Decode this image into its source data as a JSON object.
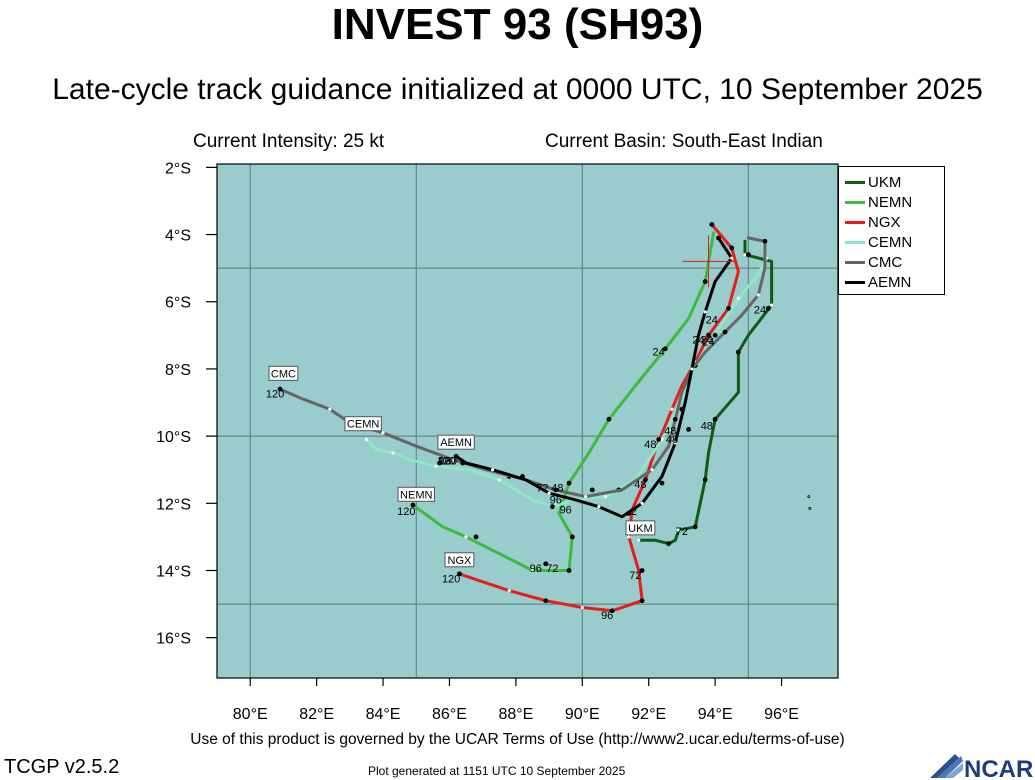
{
  "header": {
    "title": "INVEST 93 (SH93)",
    "subtitle": "Late-cycle track guidance initialized at 0000 UTC, 10 September 2025",
    "intensity": "Current Intensity: 25 kt",
    "basin": "Current Basin: South-East Indian"
  },
  "footer": {
    "terms": "Use of this product is governed by the UCAR Terms of Use (http://www2.ucar.edu/terms-of-use)",
    "version": "TCGP v2.5.2",
    "generated": "Plot generated at 1151 UTC   10 September 2025",
    "logo_text": "NCAR"
  },
  "map": {
    "lon_range": [
      79,
      97.7
    ],
    "lat_range": [
      -17.2,
      -1.9
    ],
    "lon_ticks": [
      {
        "v": 80,
        "label": "80°E"
      },
      {
        "v": 82,
        "label": "82°E"
      },
      {
        "v": 84,
        "label": "84°E"
      },
      {
        "v": 86,
        "label": "86°E"
      },
      {
        "v": 88,
        "label": "88°E"
      },
      {
        "v": 90,
        "label": "90°E"
      },
      {
        "v": 92,
        "label": "92°E"
      },
      {
        "v": 94,
        "label": "94°E"
      },
      {
        "v": 96,
        "label": "96°E"
      }
    ],
    "lat_ticks": [
      {
        "v": -2,
        "label": "2°S"
      },
      {
        "v": -4,
        "label": "4°S"
      },
      {
        "v": -6,
        "label": "6°S"
      },
      {
        "v": -8,
        "label": "8°S"
      },
      {
        "v": -10,
        "label": "10°S"
      },
      {
        "v": -12,
        "label": "12°S"
      },
      {
        "v": -14,
        "label": "14°S"
      },
      {
        "v": -16,
        "label": "16°S"
      }
    ],
    "grid_lons": [
      80,
      85,
      90,
      95
    ],
    "grid_lats": [
      -5,
      -10,
      -15
    ],
    "ocean_color": "#99cccc",
    "grid_color": "#5e7a7a",
    "current_position": {
      "lon": 93.8,
      "lat": -4.8
    },
    "islands": [
      {
        "lon": 96.85,
        "lat": -12.15
      },
      {
        "lon": 96.82,
        "lat": -11.8
      }
    ]
  },
  "legend": [
    {
      "name": "UKM",
      "color": "#135b13"
    },
    {
      "name": "NEMN",
      "color": "#3cbc3c"
    },
    {
      "name": "NGX",
      "color": "#e81c1c"
    },
    {
      "name": "CEMN",
      "color": "#8ee8c4"
    },
    {
      "name": "CMC",
      "color": "#666666"
    },
    {
      "name": "AEMN",
      "color": "#000000"
    }
  ],
  "tracks": [
    {
      "name": "UKM",
      "color": "#135b13",
      "points": [
        [
          94.9,
          -4.2
        ],
        [
          94.9,
          -4.6
        ],
        [
          95.7,
          -4.8
        ],
        [
          95.7,
          -6.1
        ],
        [
          95.0,
          -7.0
        ],
        [
          94.7,
          -7.5
        ],
        [
          94.7,
          -8.7
        ],
        [
          94.0,
          -9.5
        ],
        [
          93.8,
          -10.5
        ],
        [
          93.7,
          -11.3
        ],
        [
          93.4,
          -12.7
        ],
        [
          92.9,
          -12.8
        ],
        [
          92.8,
          -13.1
        ],
        [
          92.6,
          -13.2
        ],
        [
          92.2,
          -13.1
        ],
        [
          91.7,
          -13.1
        ]
      ],
      "markers": [
        [
          95.0,
          -4.6
        ],
        [
          95.6,
          -6.2
        ],
        [
          94.7,
          -7.5
        ],
        [
          94.0,
          -9.5
        ],
        [
          93.7,
          -11.3
        ],
        [
          93.4,
          -12.7
        ],
        [
          92.6,
          -13.2
        ]
      ],
      "hour_labels": [
        {
          "lon": 95.35,
          "lat": -6.35,
          "text": "24"
        },
        {
          "lon": 93.75,
          "lat": -9.8,
          "text": "48"
        },
        {
          "lon": 93.0,
          "lat": -12.95,
          "text": "72"
        }
      ],
      "end_label": {
        "text": "UKM",
        "lon": 91.75,
        "lat": -12.85
      }
    },
    {
      "name": "NEMN",
      "color": "#3cbc3c",
      "points": [
        [
          93.95,
          -3.95
        ],
        [
          93.7,
          -5.4
        ],
        [
          93.2,
          -6.5
        ],
        [
          92.5,
          -7.4
        ],
        [
          91.6,
          -8.5
        ],
        [
          90.8,
          -9.5
        ],
        [
          90.2,
          -10.5
        ],
        [
          89.6,
          -11.4
        ],
        [
          89.3,
          -12.3
        ],
        [
          89.7,
          -13.0
        ],
        [
          89.6,
          -14.0
        ],
        [
          88.5,
          -14.0
        ],
        [
          87.5,
          -13.5
        ],
        [
          86.5,
          -13.0
        ],
        [
          85.8,
          -12.7
        ],
        [
          84.9,
          -12.05
        ]
      ],
      "markers": [
        [
          93.7,
          -5.4
        ],
        [
          92.5,
          -7.4
        ],
        [
          90.8,
          -9.5
        ],
        [
          89.6,
          -11.4
        ],
        [
          89.7,
          -13.0
        ],
        [
          89.6,
          -14.0
        ],
        [
          88.9,
          -13.8
        ],
        [
          86.8,
          -13.0
        ],
        [
          84.9,
          -12.05
        ]
      ],
      "hour_labels": [
        {
          "lon": 92.3,
          "lat": -7.6,
          "text": "24"
        },
        {
          "lon": 89.25,
          "lat": -11.65,
          "text": "48"
        },
        {
          "lon": 89.1,
          "lat": -14.05,
          "text": "72"
        },
        {
          "lon": 88.6,
          "lat": -14.05,
          "text": "96"
        },
        {
          "lon": 84.7,
          "lat": -12.35,
          "text": "120"
        }
      ],
      "end_label": {
        "text": "NEMN",
        "lon": 85.0,
        "lat": -11.85
      }
    },
    {
      "name": "NGX",
      "color": "#e81c1c",
      "points": [
        [
          93.9,
          -3.7
        ],
        [
          94.5,
          -4.4
        ],
        [
          94.7,
          -5.1
        ],
        [
          94.4,
          -6.2
        ],
        [
          93.8,
          -7.0
        ],
        [
          93.4,
          -7.8
        ],
        [
          93.0,
          -8.5
        ],
        [
          92.7,
          -9.2
        ],
        [
          92.2,
          -10.4
        ],
        [
          91.9,
          -11.3
        ],
        [
          91.5,
          -12.2
        ],
        [
          91.4,
          -13.0
        ],
        [
          91.7,
          -14.0
        ],
        [
          91.8,
          -14.9
        ],
        [
          90.9,
          -15.2
        ],
        [
          90.0,
          -15.1
        ],
        [
          88.9,
          -14.9
        ],
        [
          87.8,
          -14.6
        ],
        [
          86.3,
          -14.1
        ]
      ],
      "markers": [
        [
          93.9,
          -3.7
        ],
        [
          94.5,
          -4.4
        ],
        [
          93.8,
          -7.0
        ],
        [
          93.0,
          -9.2
        ],
        [
          91.9,
          -11.3
        ],
        [
          91.8,
          -14.0
        ],
        [
          91.8,
          -14.9
        ],
        [
          90.9,
          -15.2
        ],
        [
          88.9,
          -14.9
        ],
        [
          86.3,
          -14.1
        ]
      ],
      "hour_labels": [
        {
          "lon": 93.75,
          "lat": -7.25,
          "text": "24"
        },
        {
          "lon": 91.75,
          "lat": -11.55,
          "text": "48"
        },
        {
          "lon": 91.6,
          "lat": -14.25,
          "text": "72"
        },
        {
          "lon": 90.75,
          "lat": -15.45,
          "text": "96"
        },
        {
          "lon": 86.05,
          "lat": -14.35,
          "text": "120"
        }
      ],
      "end_label": {
        "text": "NGX",
        "lon": 86.3,
        "lat": -13.8
      }
    },
    {
      "name": "CEMN",
      "color": "#8ee8c4",
      "points": [
        [
          95.4,
          -4.2
        ],
        [
          95.55,
          -4.7
        ],
        [
          95.3,
          -5.2
        ],
        [
          94.7,
          -5.9
        ],
        [
          94.1,
          -6.8
        ],
        [
          93.4,
          -7.9
        ],
        [
          93.0,
          -8.9
        ],
        [
          92.4,
          -10.1
        ],
        [
          91.6,
          -11.3
        ],
        [
          90.7,
          -11.8
        ],
        [
          89.7,
          -11.9
        ],
        [
          89.1,
          -12.1
        ],
        [
          88.5,
          -11.9
        ],
        [
          87.5,
          -11.3
        ],
        [
          86.6,
          -11.0
        ],
        [
          85.6,
          -10.9
        ],
        [
          84.8,
          -10.7
        ],
        [
          84.3,
          -10.5
        ],
        [
          83.8,
          -10.4
        ],
        [
          83.5,
          -10.1
        ]
      ],
      "markers": [
        [
          95.0,
          -4.6
        ],
        [
          94.4,
          -6.2
        ],
        [
          93.4,
          -7.9
        ],
        [
          92.3,
          -10.1
        ],
        [
          91.1,
          -11.6
        ],
        [
          89.1,
          -12.1
        ],
        [
          87.8,
          -11.2
        ],
        [
          85.7,
          -10.8
        ]
      ],
      "hour_labels": [
        {
          "lon": 93.9,
          "lat": -6.65,
          "text": "24"
        },
        {
          "lon": 92.05,
          "lat": -10.35,
          "text": "48"
        },
        {
          "lon": 89.5,
          "lat": -12.3,
          "text": "96"
        },
        {
          "lon": 87.6,
          "lat": -11.35,
          "text": ""
        },
        {
          "lon": 85.9,
          "lat": -10.85,
          "text": "120"
        }
      ],
      "end_label": {
        "text": "CEMN",
        "lon": 83.4,
        "lat": -9.75
      }
    },
    {
      "name": "CMC",
      "color": "#666666",
      "points": [
        [
          95.0,
          -4.1
        ],
        [
          95.5,
          -4.2
        ],
        [
          95.5,
          -5.0
        ],
        [
          95.3,
          -5.8
        ],
        [
          94.8,
          -6.4
        ],
        [
          94.3,
          -6.9
        ],
        [
          93.7,
          -7.5
        ],
        [
          93.3,
          -8.0
        ],
        [
          93.0,
          -8.7
        ],
        [
          92.8,
          -9.5
        ],
        [
          92.6,
          -10.3
        ],
        [
          92.1,
          -11.0
        ],
        [
          91.2,
          -11.6
        ],
        [
          90.1,
          -11.8
        ],
        [
          89.2,
          -11.6
        ],
        [
          88.3,
          -11.3
        ],
        [
          87.1,
          -11.0
        ],
        [
          86.1,
          -10.7
        ],
        [
          85.0,
          -10.3
        ],
        [
          84.0,
          -9.9
        ],
        [
          83.0,
          -9.6
        ],
        [
          82.4,
          -9.2
        ],
        [
          81.6,
          -8.9
        ],
        [
          80.9,
          -8.6
        ]
      ],
      "markers": [
        [
          95.5,
          -4.2
        ],
        [
          94.3,
          -6.9
        ],
        [
          92.8,
          -9.5
        ],
        [
          90.3,
          -11.6
        ],
        [
          88.2,
          -11.2
        ],
        [
          86.4,
          -10.8
        ],
        [
          80.9,
          -8.6
        ]
      ],
      "hour_labels": [
        {
          "lon": 93.5,
          "lat": -7.25,
          "text": "24"
        },
        {
          "lon": 92.65,
          "lat": -9.95,
          "text": "48"
        },
        {
          "lon": 88.8,
          "lat": -11.65,
          "text": "72"
        },
        {
          "lon": 85.85,
          "lat": -10.85,
          "text": "96"
        },
        {
          "lon": 80.75,
          "lat": -8.85,
          "text": "120"
        }
      ],
      "end_label": {
        "text": "CMC",
        "lon": 81.0,
        "lat": -8.25
      }
    },
    {
      "name": "AEMN",
      "color": "#000000",
      "points": [
        [
          94.1,
          -4.1
        ],
        [
          94.5,
          -4.7
        ],
        [
          94.0,
          -5.4
        ],
        [
          93.7,
          -6.3
        ],
        [
          93.5,
          -7.0
        ],
        [
          93.3,
          -8.0
        ],
        [
          93.1,
          -9.0
        ],
        [
          92.8,
          -10.2
        ],
        [
          92.4,
          -11.2
        ],
        [
          91.8,
          -12.0
        ],
        [
          91.2,
          -12.4
        ],
        [
          90.5,
          -12.1
        ],
        [
          89.8,
          -11.9
        ],
        [
          89.0,
          -11.7
        ],
        [
          88.3,
          -11.3
        ],
        [
          87.3,
          -11.0
        ],
        [
          86.5,
          -10.8
        ],
        [
          86.2,
          -10.6
        ]
      ],
      "markers": [
        [
          94.1,
          -4.1
        ],
        [
          94.0,
          -7.0
        ],
        [
          93.2,
          -9.8
        ],
        [
          92.4,
          -11.4
        ],
        [
          91.4,
          -12.3
        ],
        [
          89.2,
          -11.6
        ],
        [
          86.2,
          -10.6
        ]
      ],
      "hour_labels": [
        {
          "lon": 93.8,
          "lat": -7.3,
          "text": "24"
        },
        {
          "lon": 92.7,
          "lat": -10.2,
          "text": "48"
        },
        {
          "lon": 91.55,
          "lat": -12.35,
          "text": "2"
        },
        {
          "lon": 89.2,
          "lat": -12.0,
          "text": "96"
        },
        {
          "lon": 85.95,
          "lat": -10.85,
          "text": "120"
        }
      ],
      "end_label": {
        "text": "AEMN",
        "lon": 86.2,
        "lat": -10.3
      }
    }
  ]
}
